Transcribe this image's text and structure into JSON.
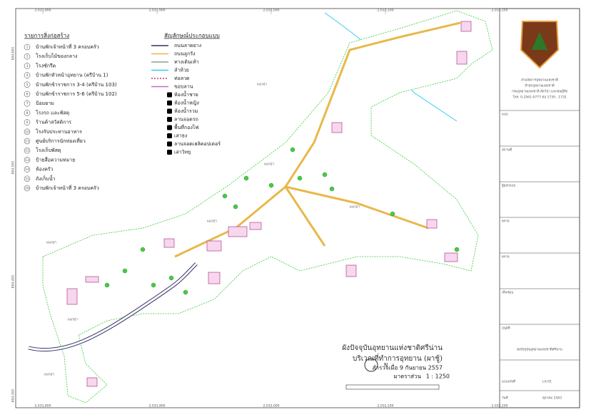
{
  "map": {
    "coords_top": [
      "2,031,800",
      "2,031,900",
      "2,032,000",
      "2,032,100",
      "2,032,200"
    ],
    "coords_bottom": [
      "2,031,800",
      "2,031,900",
      "2,032,000",
      "2,032,100",
      "2,032,200"
    ],
    "coords_left": [
      "694,600",
      "694,500",
      "694,400",
      "694,300"
    ],
    "buildings": {
      "title": "รายการสิ่งก่อสร้าง",
      "items": [
        {
          "no": 1,
          "label": "บ้านพักเจ้าหน้าที่ 3 ครอบครัว"
        },
        {
          "no": 2,
          "label": "โรงเก็บไม้ของกลาง"
        },
        {
          "no": 3,
          "label": "โรงซักรีด"
        },
        {
          "no": 4,
          "label": "บ้านพักหัวหน้าอุทยาน (ครีบ้าน 1)"
        },
        {
          "no": 5,
          "label": "บ้านพักข้าราชการ 3-4 (ครีบ้าน 103)"
        },
        {
          "no": 6,
          "label": "บ้านพักข้าราชการ 5-6 (ครีบ้าน 102)"
        },
        {
          "no": 7,
          "label": "ป้อมยาม"
        },
        {
          "no": 8,
          "label": "โรงรถ และพัสดุ"
        },
        {
          "no": 9,
          "label": "ร้านค้าสวัสดิการ"
        },
        {
          "no": 10,
          "label": "โรงรับประทานอาหาร"
        },
        {
          "no": 11,
          "label": "ศูนย์บริการนักท่องเที่ยว"
        },
        {
          "no": 12,
          "label": "โรงเก็บพัสดุ"
        },
        {
          "no": 13,
          "label": "ป้ายสื่อความหมาย"
        },
        {
          "no": 14,
          "label": "ห้องครัว"
        },
        {
          "no": 15,
          "label": "ถังเก็บน้ำ"
        },
        {
          "no": 16,
          "label": "บ้านพักเจ้าหน้าที่ 3 ครอบครัว"
        }
      ]
    },
    "symbols": {
      "title": "สัญลักษณ์ประกอบแบบ",
      "items": [
        {
          "label": "ถนนลาดยาง",
          "color": "#333366",
          "kind": "line"
        },
        {
          "label": "ถนนลูกรัง",
          "color": "#e8b84a",
          "kind": "line"
        },
        {
          "label": "ทางเดินเท้า",
          "color": "#999999",
          "kind": "line"
        },
        {
          "label": "ลำห้วย",
          "color": "#33ccee",
          "kind": "line"
        },
        {
          "label": "ท่อลวด",
          "color": "#cc3366",
          "kind": "dash"
        },
        {
          "label": "ขอบลาน",
          "color": "#cc66cc",
          "kind": "line"
        },
        {
          "label": "ห้องน้ำชาย",
          "color": "#000000",
          "kind": "icon"
        },
        {
          "label": "ห้องน้ำหญิง",
          "color": "#000000",
          "kind": "icon"
        },
        {
          "label": "ห้องน้ำรวม",
          "color": "#000000",
          "kind": "icon"
        },
        {
          "label": "ลานจอดรถ",
          "color": "#000000",
          "kind": "icon"
        },
        {
          "label": "พื้นที่กองไฟ",
          "color": "#000000",
          "kind": "icon"
        },
        {
          "label": "เสาธง",
          "color": "#000000",
          "kind": "icon"
        },
        {
          "label": "ลานจอดเฮลิคอปเตอร์",
          "color": "#000000",
          "kind": "icon"
        },
        {
          "label": "เสาวิทยุ",
          "color": "#000000",
          "kind": "icon"
        }
      ]
    },
    "forest_edge": "แนวป่า",
    "title": {
      "line1": "ผังปัจจุบันอุทยานแห่งชาติศรีน่าน",
      "line2": "บริเวณที่ทำการอุทยาน (ผาชู้)",
      "line3": "สำรวจเมื่อ 9 กันยายน 2557",
      "scale_label": "มาตราส่วน",
      "scale": "1 : 1250",
      "north": "N"
    }
  },
  "panel": {
    "office": [
      "ส่วนจัดการอุทยานแห่งชาติ",
      "สำนักอุทยานแห่งชาติ",
      "กรมอุทยานแห่งชาติ สัตว์ป่า และพันธุ์พืช",
      "โทร. 0-2561-0777 ต่อ 1730 , 1732"
    ],
    "fields": [
      "แบบ",
      "สถานที่",
      "ผู้ออกแบบ",
      "ตรวจ",
      "ตรวจ",
      "เห็นชอบ",
      "อนุมัติ"
    ],
    "project": "ผังปัจจุบันอุทยานแห่งชาติศรีน่าน",
    "sheet_label": "แบบเลขที่",
    "sheet": "LA-01",
    "date_label": "วันที่",
    "date": "ตุลาคม 2563"
  }
}
